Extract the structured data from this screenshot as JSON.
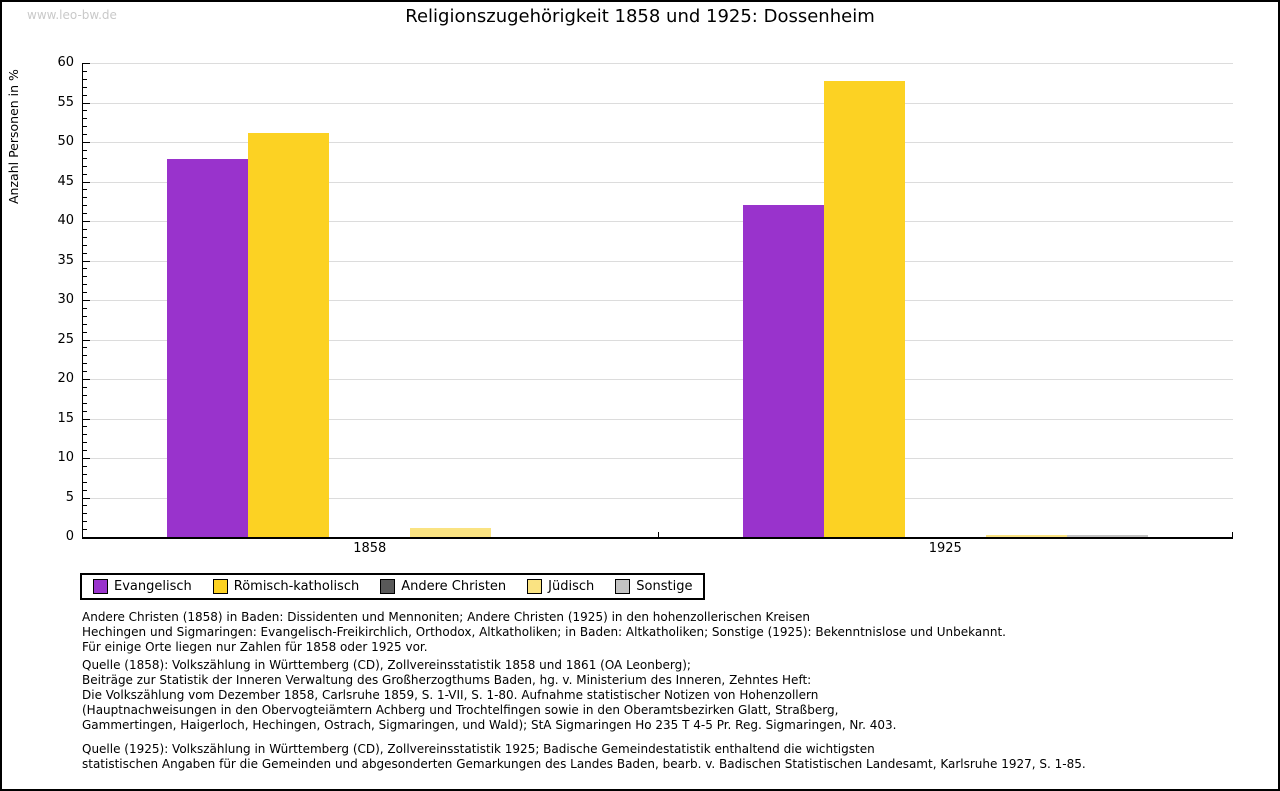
{
  "page": {
    "watermark": "www.leo-bw.de",
    "title": "Religionszugehörigkeit 1858 und 1925: Dossenheim"
  },
  "chart_data": {
    "type": "bar",
    "title": "Religionszugehörigkeit 1858 und 1925: Dossenheim",
    "xlabel": "",
    "ylabel": "Anzahl Personen in %",
    "categories": [
      "1858",
      "1925"
    ],
    "series": [
      {
        "name": "Evangelisch",
        "color": "#9933cc",
        "values": [
          47.8,
          42.0
        ]
      },
      {
        "name": "Römisch-katholisch",
        "color": "#fcd223",
        "values": [
          51.1,
          57.7
        ]
      },
      {
        "name": "Andere Christen",
        "color": "#595959",
        "values": [
          0,
          0
        ]
      },
      {
        "name": "Jüdisch",
        "color": "#fae382",
        "values": [
          1.2,
          0.2
        ]
      },
      {
        "name": "Sonstige",
        "color": "#c3c3c3",
        "values": [
          0,
          0.3
        ]
      }
    ],
    "ylim": [
      0,
      60
    ],
    "ytick_step": 5,
    "yminor_step": 1,
    "grid": true,
    "legend_position": "bottom-left"
  },
  "footnotes": {
    "blocks": [
      [
        "Andere Christen (1858) in Baden: Dissidenten und Mennoniten; Andere Christen (1925) in den hohenzollerischen Kreisen",
        "Hechingen und Sigmaringen: Evangelisch-Freikirchlich, Orthodox, Altkatholiken; in Baden: Altkatholiken; Sonstige (1925): Bekenntnislose und Unbekannt.",
        "Für einige Orte liegen nur Zahlen für 1858 oder 1925 vor."
      ],
      [
        "Quelle (1858): Volkszählung in Württemberg (CD), Zollvereinsstatistik 1858 und 1861 (OA Leonberg);",
        "Beiträge zur Statistik der Inneren Verwaltung des Großherzogthums Baden, hg. v. Ministerium des Inneren, Zehntes Heft:",
        "Die Volkszählung vom Dezember 1858, Carlsruhe 1859, S. 1-VII, S. 1-80. Aufnahme statistischer Notizen von Hohenzollern",
        "(Hauptnachweisungen in den Obervogteiämtern Achberg und Trochtelfingen sowie in den Oberamtsbezirken Glatt, Straßberg,",
        "Gammertingen, Haigerloch, Hechingen, Ostrach, Sigmaringen, und Wald); StA Sigmaringen Ho 235 T 4-5 Pr. Reg. Sigmaringen, Nr. 403."
      ],
      [
        "Quelle (1925): Volkszählung in Württemberg (CD), Zollvereinsstatistik 1925; Badische Gemeindestatistik enthaltend die wichtigsten",
        "statistischen Angaben für die Gemeinden und abgesonderten Gemarkungen des Landes Baden, bearb. v. Badischen Statistischen Landesamt, Karlsruhe 1927, S. 1-85."
      ]
    ]
  }
}
